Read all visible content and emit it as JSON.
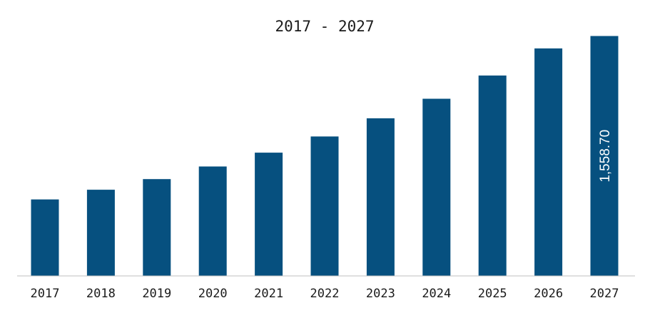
{
  "chart_data": {
    "type": "bar",
    "title": "2017 - 2027",
    "xlabel": "",
    "ylabel": "",
    "categories": [
      "2017",
      "2018",
      "2019",
      "2020",
      "2021",
      "2022",
      "2023",
      "2024",
      "2025",
      "2026",
      "2027"
    ],
    "values": [
      497,
      560,
      629,
      711,
      801,
      906,
      1024,
      1151,
      1302,
      1478,
      1558.7
    ],
    "data_labels": [
      "",
      "",
      "",
      "",
      "",
      "",
      "",
      "",
      "",
      "",
      "1,558.70"
    ],
    "ylim": [
      0,
      1700
    ],
    "grid": false,
    "legend": "none",
    "bar_color": "#06507f"
  }
}
